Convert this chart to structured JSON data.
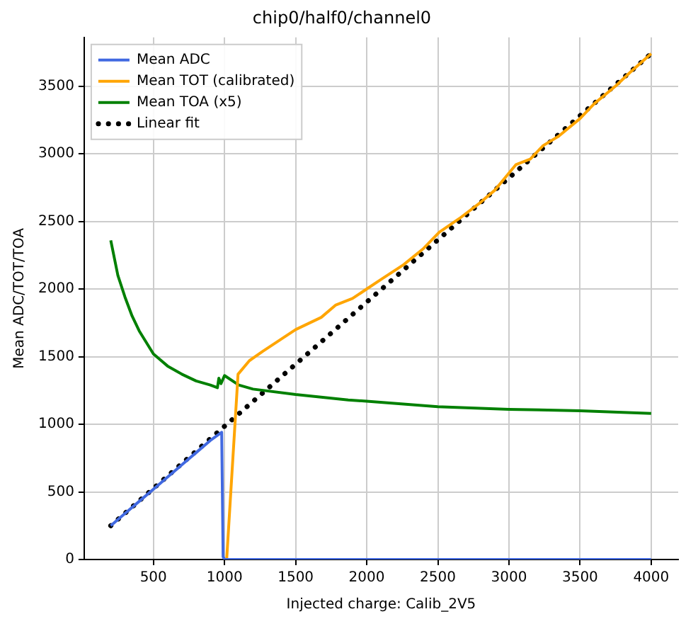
{
  "chart_data": {
    "type": "line",
    "title": "chip0/half0/channel0",
    "xlabel": "Injected charge: Calib_2V5",
    "ylabel": "Mean ADC/TOT/TOA",
    "xlim": [
      13,
      4190
    ],
    "xticks": [
      500,
      1000,
      1500,
      2000,
      2500,
      3000,
      3500,
      4000
    ],
    "ylim": [
      0,
      3860
    ],
    "yticks": [
      0,
      500,
      1000,
      1500,
      2000,
      2500,
      3000,
      3500
    ],
    "grid": true,
    "legend": "top left",
    "series": [
      {
        "name": "Mean ADC",
        "color": "#4169e1",
        "type": "line",
        "x": [
          200,
          300,
          400,
          500,
          600,
          700,
          800,
          900,
          980,
          990,
          1000,
          1500,
          2000,
          2500,
          3000,
          3500,
          4000
        ],
        "values": [
          250,
          340,
          430,
          520,
          610,
          700,
          790,
          880,
          940,
          20,
          0,
          0,
          0,
          0,
          0,
          0,
          0
        ]
      },
      {
        "name": "Mean TOT (calibrated)",
        "color": "#ffa500",
        "type": "line",
        "x": [
          1000,
          1015,
          1095,
          1175,
          1270,
          1400,
          1500,
          1680,
          1780,
          1900,
          2000,
          2100,
          2260,
          2400,
          2510,
          2650,
          2800,
          2900,
          3050,
          3150,
          3240,
          3350,
          3500,
          3600,
          3750,
          3850,
          4000
        ],
        "values": [
          0,
          0,
          1370,
          1470,
          1540,
          1630,
          1700,
          1790,
          1880,
          1930,
          2000,
          2070,
          2180,
          2300,
          2420,
          2520,
          2640,
          2730,
          2920,
          2960,
          3060,
          3130,
          3260,
          3370,
          3500,
          3600,
          3740
        ]
      },
      {
        "name": "Mean TOA (x5)",
        "color": "#008000",
        "type": "line",
        "x": [
          200,
          250,
          300,
          350,
          400,
          500,
          600,
          700,
          800,
          900,
          950,
          960,
          975,
          1000,
          1100,
          1200,
          1500,
          1870,
          2000,
          2500,
          3000,
          3500,
          4000
        ],
        "values": [
          2360,
          2100,
          1940,
          1800,
          1690,
          1520,
          1430,
          1370,
          1320,
          1290,
          1270,
          1340,
          1300,
          1360,
          1290,
          1260,
          1220,
          1180,
          1170,
          1130,
          1110,
          1100,
          1080
        ]
      },
      {
        "name": "Linear fit",
        "color": "#000000",
        "type": "line",
        "line_style": "dotted",
        "x": [
          200,
          4000
        ],
        "values": [
          250,
          3740
        ]
      }
    ]
  }
}
